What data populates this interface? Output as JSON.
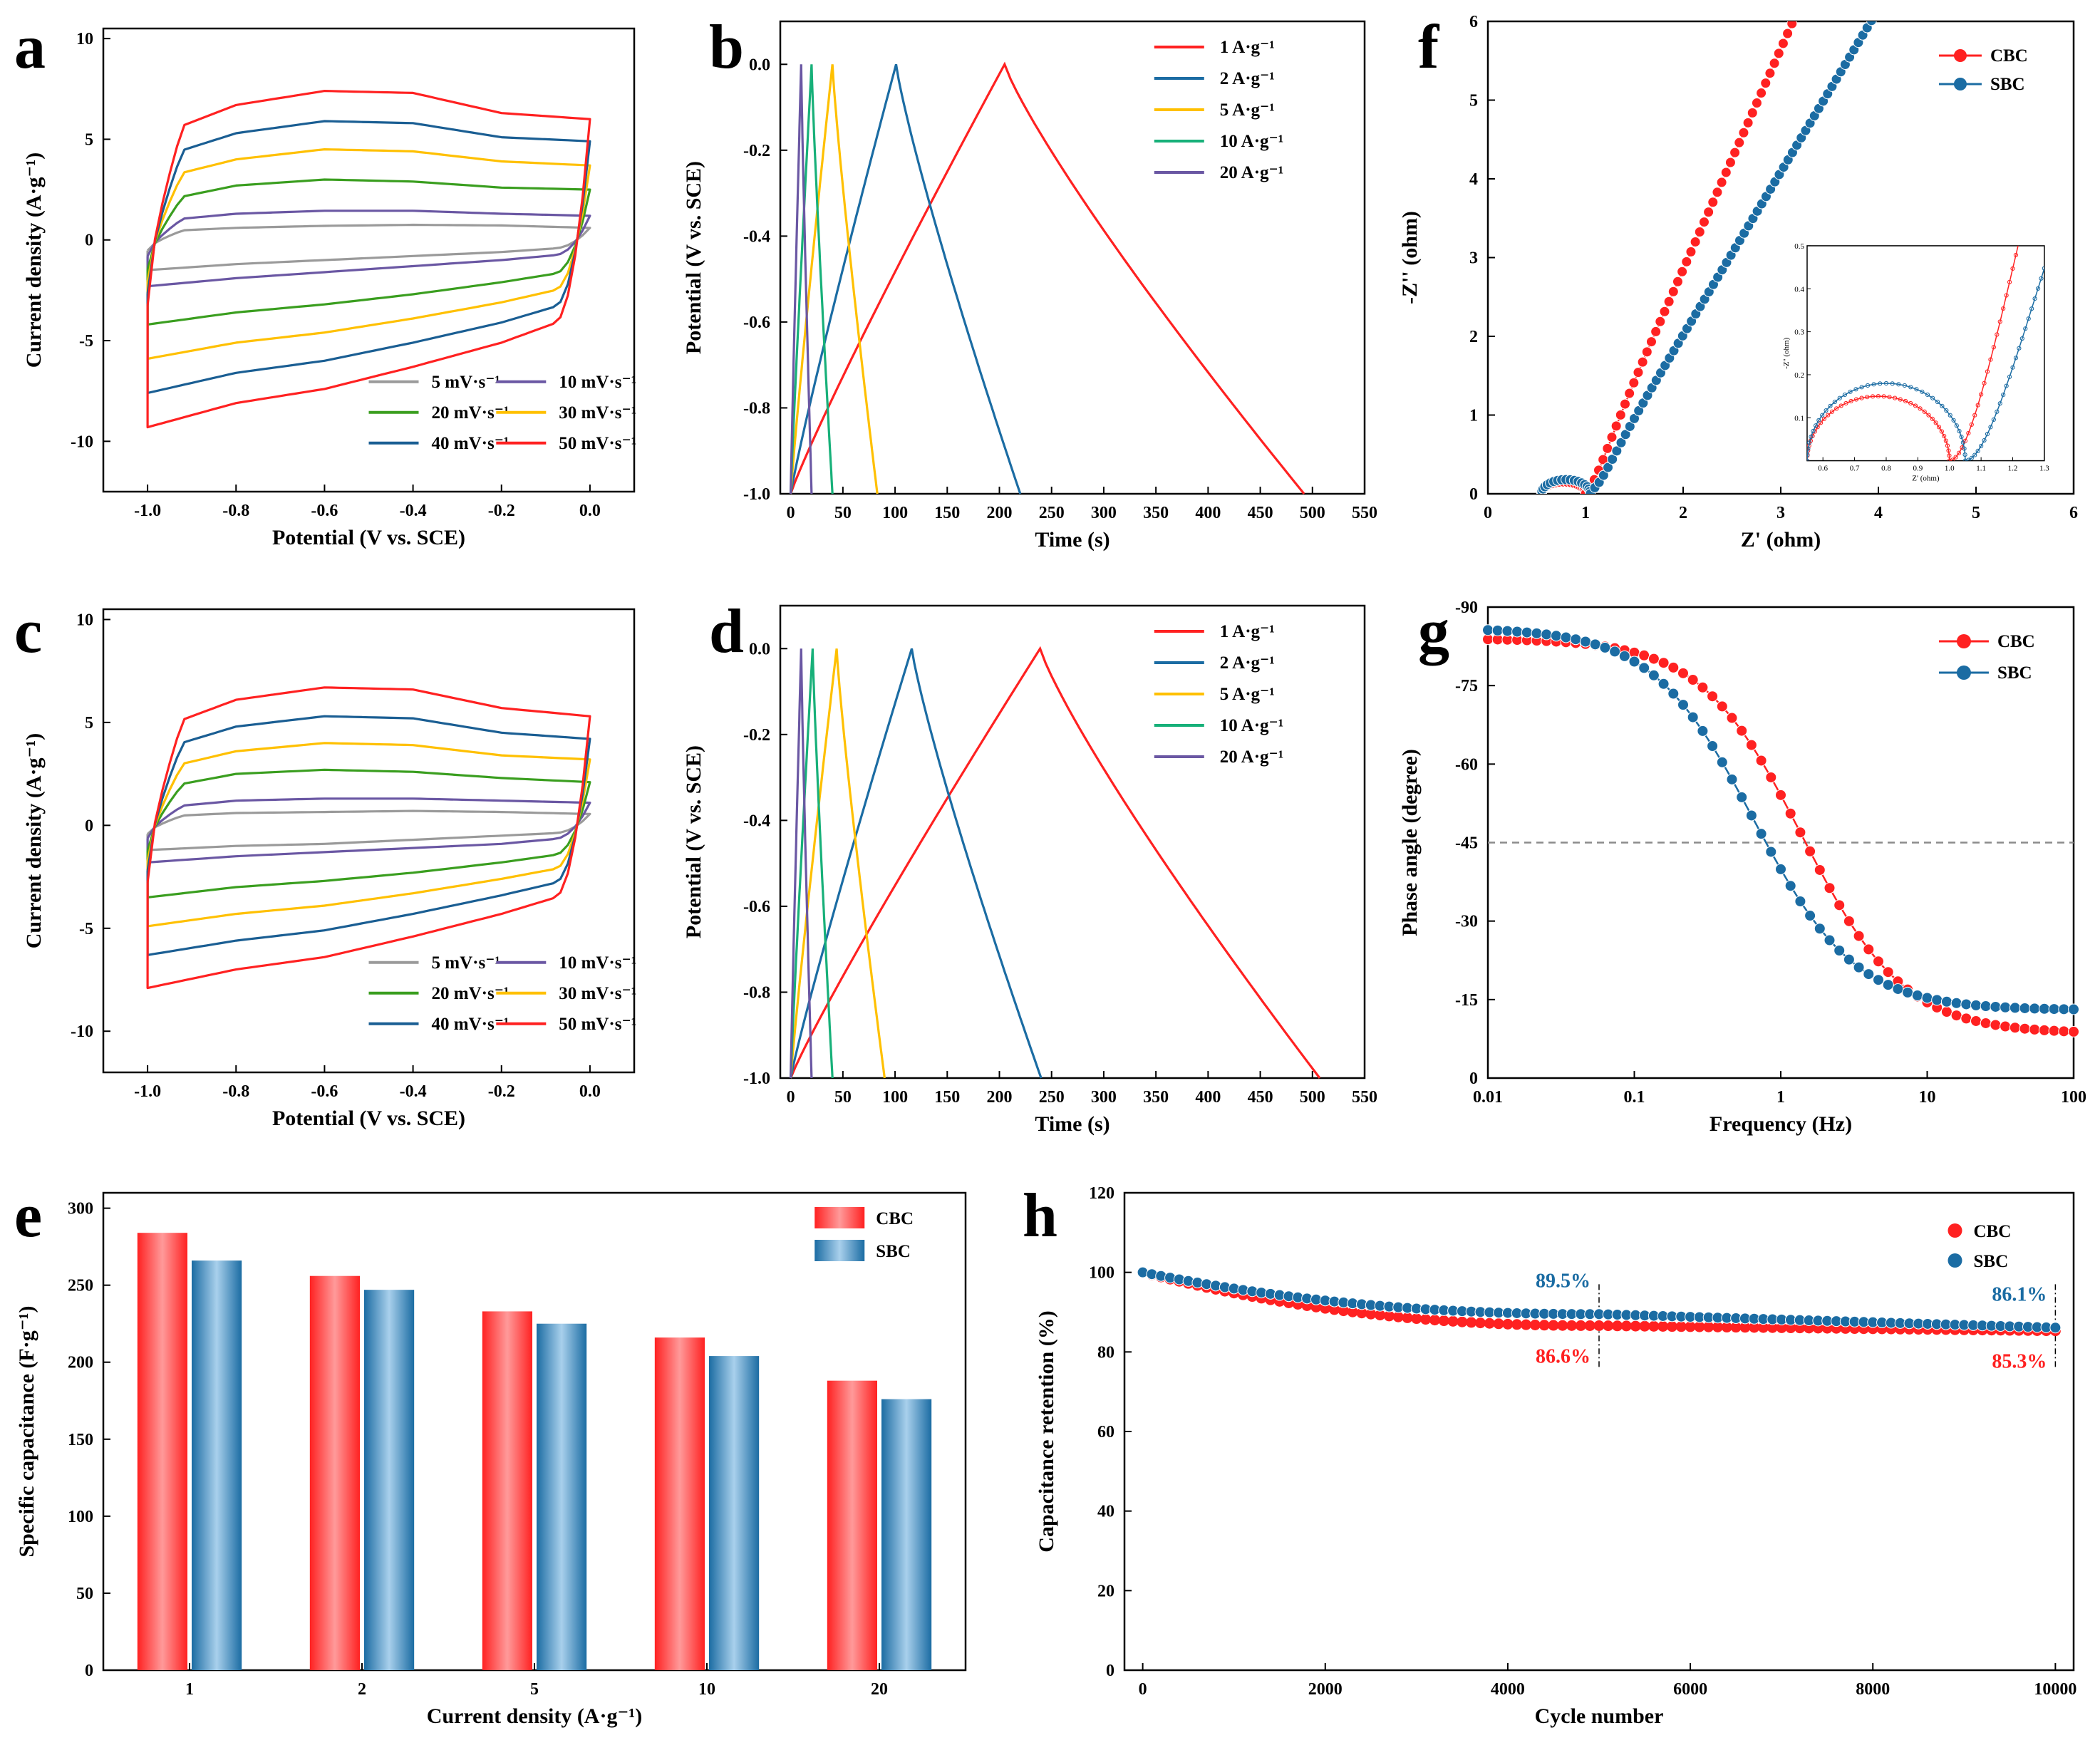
{
  "colors": {
    "red": "#ff2121",
    "blue": "#1b6ca3",
    "yellow": "#ffc000",
    "green": "#17b079",
    "purple": "#6a57a3",
    "gray": "#9a9a9a",
    "dgreen": "#3a9e1f",
    "dblue": "#1a5e93",
    "dashed": "#8c8c8c"
  },
  "chart_data": [
    {
      "id": "a",
      "type": "line",
      "panel_label": "a",
      "xlabel": "Potential (V vs. SCE)",
      "ylabel": "Current density (A·g⁻¹)",
      "xlim": [
        -1.1,
        0.1
      ],
      "ylim": [
        -12.5,
        10.5
      ],
      "xticks": [
        -1.0,
        -0.8,
        -0.6,
        -0.4,
        -0.2,
        0.0
      ],
      "xtick_labels": [
        "-1.0",
        "-0.8",
        "-0.6",
        "-0.4",
        "-0.2",
        "0.0"
      ],
      "yticks": [
        -10,
        -5,
        0,
        5,
        10
      ],
      "ytick_labels": [
        "-10",
        "-5",
        "0",
        "5",
        "10"
      ],
      "series": [
        {
          "name": "5  mV·s⁻¹",
          "color": "gray",
          "top": [
            0.4,
            0.6,
            0.7,
            0.75,
            0.72,
            0.6
          ],
          "bottom": [
            -1.5,
            -1.2,
            -1.0,
            -0.8,
            -0.6,
            -0.3
          ]
        },
        {
          "name": "10 mV·s⁻¹",
          "color": "purple",
          "top": [
            0.9,
            1.3,
            1.45,
            1.45,
            1.3,
            1.2
          ],
          "bottom": [
            -2.3,
            -1.9,
            -1.6,
            -1.3,
            -1.0,
            -0.6
          ]
        },
        {
          "name": "20 mV·s⁻¹",
          "color": "dgreen",
          "top": [
            1.8,
            2.7,
            3.0,
            2.9,
            2.6,
            2.5
          ],
          "bottom": [
            -4.2,
            -3.6,
            -3.2,
            -2.7,
            -2.1,
            -1.4
          ]
        },
        {
          "name": "30 mV·s⁻¹",
          "color": "yellow",
          "top": [
            2.9,
            4.0,
            4.5,
            4.4,
            3.9,
            3.7
          ],
          "bottom": [
            -5.9,
            -5.1,
            -4.6,
            -3.9,
            -3.1,
            -2.1
          ]
        },
        {
          "name": "40 mV·s⁻¹",
          "color": "dblue",
          "top": [
            3.9,
            5.3,
            5.9,
            5.8,
            5.1,
            4.9
          ],
          "bottom": [
            -7.6,
            -6.6,
            -6.0,
            -5.1,
            -4.1,
            -2.8
          ]
        },
        {
          "name": "50 mV·s⁻¹",
          "color": "red",
          "top": [
            5.0,
            6.7,
            7.4,
            7.3,
            6.3,
            6.0
          ],
          "bottom": [
            -9.3,
            -8.1,
            -7.4,
            -6.3,
            -5.1,
            -3.5
          ]
        }
      ]
    },
    {
      "id": "b",
      "type": "line",
      "panel_label": "b",
      "xlabel": "Time (s)",
      "ylabel": "Potential (V vs. SCE)",
      "xlim": [
        -10,
        550
      ],
      "ylim": [
        -1.0,
        0.1
      ],
      "xticks": [
        0,
        50,
        100,
        150,
        200,
        250,
        300,
        350,
        400,
        450,
        500,
        550
      ],
      "xtick_labels": [
        "0",
        "50",
        "100",
        "150",
        "200",
        "250",
        "300",
        "350",
        "400",
        "450",
        "500",
        "550"
      ],
      "yticks": [
        -1.0,
        -0.8,
        -0.6,
        -0.4,
        -0.2,
        0.0
      ],
      "ytick_labels": [
        "-1.0",
        "-0.8",
        "-0.6",
        "-0.4",
        "-0.2",
        "0.0"
      ],
      "series": [
        {
          "name": "1  A·g⁻¹",
          "color": "red",
          "peak": 205,
          "end": 492
        },
        {
          "name": "2  A·g⁻¹",
          "color": "blue",
          "peak": 101,
          "end": 220
        },
        {
          "name": "5  A·g⁻¹",
          "color": "yellow",
          "peak": 40,
          "end": 83
        },
        {
          "name": "10 A·g⁻¹",
          "color": "green",
          "peak": 20,
          "end": 40
        },
        {
          "name": "20 A·g⁻¹",
          "color": "purple",
          "peak": 10,
          "end": 20
        }
      ]
    },
    {
      "id": "c",
      "type": "line",
      "panel_label": "c",
      "xlabel": "Potential (V vs. SCE)",
      "ylabel": "Current density (A·g⁻¹)",
      "xlim": [
        -1.1,
        0.1
      ],
      "ylim": [
        -12.0,
        10.5
      ],
      "xticks": [
        -1.0,
        -0.8,
        -0.6,
        -0.4,
        -0.2,
        0.0
      ],
      "xtick_labels": [
        "-1.0",
        "-0.8",
        "-0.6",
        "-0.4",
        "-0.2",
        "0.0"
      ],
      "yticks": [
        -10,
        -5,
        0,
        5,
        10
      ],
      "ytick_labels": [
        "-10",
        "-5",
        "0",
        "5",
        "10"
      ],
      "series": [
        {
          "name": "5  mV·s⁻¹",
          "color": "gray",
          "top": [
            0.4,
            0.6,
            0.65,
            0.7,
            0.65,
            0.55
          ],
          "bottom": [
            -1.2,
            -1.0,
            -0.9,
            -0.7,
            -0.5,
            -0.3
          ]
        },
        {
          "name": "10 mV·s⁻¹",
          "color": "purple",
          "top": [
            0.8,
            1.2,
            1.3,
            1.3,
            1.2,
            1.1
          ],
          "bottom": [
            -1.8,
            -1.5,
            -1.3,
            -1.1,
            -0.9,
            -0.5
          ]
        },
        {
          "name": "20 mV·s⁻¹",
          "color": "dgreen",
          "top": [
            1.7,
            2.5,
            2.7,
            2.6,
            2.3,
            2.1
          ],
          "bottom": [
            -3.5,
            -3.0,
            -2.7,
            -2.3,
            -1.8,
            -1.2
          ]
        },
        {
          "name": "30 mV·s⁻¹",
          "color": "yellow",
          "top": [
            2.6,
            3.6,
            4.0,
            3.9,
            3.4,
            3.2
          ],
          "bottom": [
            -4.9,
            -4.3,
            -3.9,
            -3.3,
            -2.6,
            -1.8
          ]
        },
        {
          "name": "40 mV·s⁻¹",
          "color": "dblue",
          "top": [
            3.5,
            4.8,
            5.3,
            5.2,
            4.5,
            4.2
          ],
          "bottom": [
            -6.3,
            -5.6,
            -5.1,
            -4.3,
            -3.4,
            -2.4
          ]
        },
        {
          "name": "50 mV·s⁻¹",
          "color": "red",
          "top": [
            4.5,
            6.1,
            6.7,
            6.6,
            5.7,
            5.3
          ],
          "bottom": [
            -7.9,
            -7.0,
            -6.4,
            -5.4,
            -4.3,
            -3.0
          ]
        }
      ]
    },
    {
      "id": "d",
      "type": "line",
      "panel_label": "d",
      "xlabel": "Time (s)",
      "ylabel": "Potential (V vs. SCE)",
      "xlim": [
        -10,
        550
      ],
      "ylim": [
        -1.0,
        0.1
      ],
      "xticks": [
        0,
        50,
        100,
        150,
        200,
        250,
        300,
        350,
        400,
        450,
        500,
        550
      ],
      "xtick_labels": [
        "0",
        "50",
        "100",
        "150",
        "200",
        "250",
        "300",
        "350",
        "400",
        "450",
        "500",
        "550"
      ],
      "yticks": [
        -1.0,
        -0.8,
        -0.6,
        -0.4,
        -0.2,
        0.0
      ],
      "ytick_labels": [
        "-1.0",
        "-0.8",
        "-0.6",
        "-0.4",
        "-0.2",
        "0.0"
      ],
      "series": [
        {
          "name": "1  A·g⁻¹",
          "color": "red",
          "peak": 239,
          "end": 507
        },
        {
          "name": "2  A·g⁻¹",
          "color": "blue",
          "peak": 116,
          "end": 240
        },
        {
          "name": "5  A·g⁻¹",
          "color": "yellow",
          "peak": 44,
          "end": 90
        },
        {
          "name": "10 A·g⁻¹",
          "color": "green",
          "peak": 21,
          "end": 40
        },
        {
          "name": "20 A·g⁻¹",
          "color": "purple",
          "peak": 10,
          "end": 20
        }
      ]
    },
    {
      "id": "e",
      "type": "bar",
      "panel_label": "e",
      "xlabel": "Current density (A·g⁻¹)",
      "ylabel": "Specific capacitance (F·g⁻¹)",
      "categories": [
        "1",
        "2",
        "5",
        "10",
        "20"
      ],
      "ylim": [
        0,
        310
      ],
      "yticks": [
        0,
        50,
        100,
        150,
        200,
        250,
        300
      ],
      "ytick_labels": [
        "0",
        "50",
        "100",
        "150",
        "200",
        "250",
        "300"
      ],
      "series": [
        {
          "name": "CBC",
          "color": "red",
          "values": [
            284,
            256,
            233,
            216,
            188
          ]
        },
        {
          "name": "SBC",
          "color": "blue",
          "values": [
            266,
            247,
            225,
            204,
            176
          ]
        }
      ]
    },
    {
      "id": "f",
      "type": "scatter",
      "panel_label": "f",
      "xlabel": "Z' (ohm)",
      "ylabel": "-Z'' (ohm)",
      "xlim": [
        0,
        6
      ],
      "ylim": [
        0,
        6
      ],
      "xticks": [
        0,
        1,
        2,
        3,
        4,
        5,
        6
      ],
      "xtick_labels": [
        "0",
        "1",
        "2",
        "3",
        "4",
        "5",
        "6"
      ],
      "yticks": [
        0,
        1,
        2,
        3,
        4,
        5,
        6
      ],
      "ytick_labels": [
        "0",
        "1",
        "2",
        "3",
        "4",
        "5",
        "6"
      ],
      "series": [
        {
          "name": "CBC",
          "color": "red",
          "x0": 0.55,
          "x1": 1.0,
          "arc_height": 0.15,
          "slope": 2.8
        },
        {
          "name": "SBC",
          "color": "blue",
          "x0": 0.55,
          "x1": 1.05,
          "arc_height": 0.18,
          "slope": 2.07
        }
      ],
      "inset": {
        "xlabel": "Z' (ohm)",
        "ylabel": "-Z'' (ohm)",
        "xlim": [
          0.55,
          1.3
        ],
        "ylim": [
          0,
          0.5
        ],
        "xticks": [
          0.6,
          0.7,
          0.8,
          0.9,
          1.0,
          1.1,
          1.2,
          1.3
        ],
        "xtick_labels": [
          "0.6",
          "0.7",
          "0.8",
          "0.9",
          "1.0",
          "1.1",
          "1.2",
          "1.3"
        ],
        "yticks": [
          0.1,
          0.2,
          0.3,
          0.4,
          0.5
        ],
        "ytick_labels": [
          "0.1",
          "0.2",
          "0.3",
          "0.4",
          "0.5"
        ]
      }
    },
    {
      "id": "g",
      "type": "scatter",
      "panel_label": "g",
      "xlabel": "Frequency (Hz)",
      "ylabel": "Phase angle (degree)",
      "xscale": "log",
      "xlim": [
        0.01,
        100
      ],
      "ylim": [
        0,
        -90
      ],
      "xticks": [
        0.01,
        0.1,
        1,
        10,
        100
      ],
      "xtick_labels": [
        "0.01",
        "0.1",
        "1",
        "10",
        "100"
      ],
      "yticks": [
        0,
        -15,
        -30,
        -45,
        -60,
        -75,
        -90
      ],
      "ytick_labels": [
        "0",
        "-15",
        "-30",
        "-45",
        "-60",
        "-75",
        "-90"
      ],
      "reference_line": -45,
      "series": [
        {
          "name": "CBC",
          "color": "red",
          "low": -84,
          "high": -8.5,
          "f_half": 1.4
        },
        {
          "name": "SBC",
          "color": "blue",
          "low": -86,
          "high": -13,
          "f_half": 0.65
        }
      ]
    },
    {
      "id": "h",
      "type": "scatter",
      "panel_label": "h",
      "xlabel": "Cycle number",
      "ylabel": "Capacitance retention (%)",
      "xlim": [
        -200,
        10200
      ],
      "ylim": [
        0,
        120
      ],
      "xticks": [
        0,
        2000,
        4000,
        6000,
        8000,
        10000
      ],
      "xtick_labels": [
        "0",
        "2000",
        "4000",
        "6000",
        "8000",
        "10000"
      ],
      "yticks": [
        0,
        20,
        40,
        60,
        80,
        100,
        120
      ],
      "ytick_labels": [
        "0",
        "20",
        "40",
        "60",
        "80",
        "100",
        "120"
      ],
      "markers": [
        5000,
        10000
      ],
      "series": [
        {
          "name": "CBC",
          "color": "red",
          "start": 100,
          "at_5000": 86.6,
          "at_10000": 85.3
        },
        {
          "name": "SBC",
          "color": "blue",
          "start": 100,
          "at_5000": 89.5,
          "at_10000": 86.1
        }
      ],
      "annotations": [
        {
          "text": "89.5%",
          "color": "blue",
          "x": 5000,
          "y": 89.5,
          "pos": "above-left"
        },
        {
          "text": "86.6%",
          "color": "red",
          "x": 5000,
          "y": 86.6,
          "pos": "below-left"
        },
        {
          "text": "86.1%",
          "color": "blue",
          "x": 10000,
          "y": 86.1,
          "pos": "above-left"
        },
        {
          "text": "85.3%",
          "color": "red",
          "x": 10000,
          "y": 85.3,
          "pos": "below-left"
        }
      ]
    }
  ]
}
